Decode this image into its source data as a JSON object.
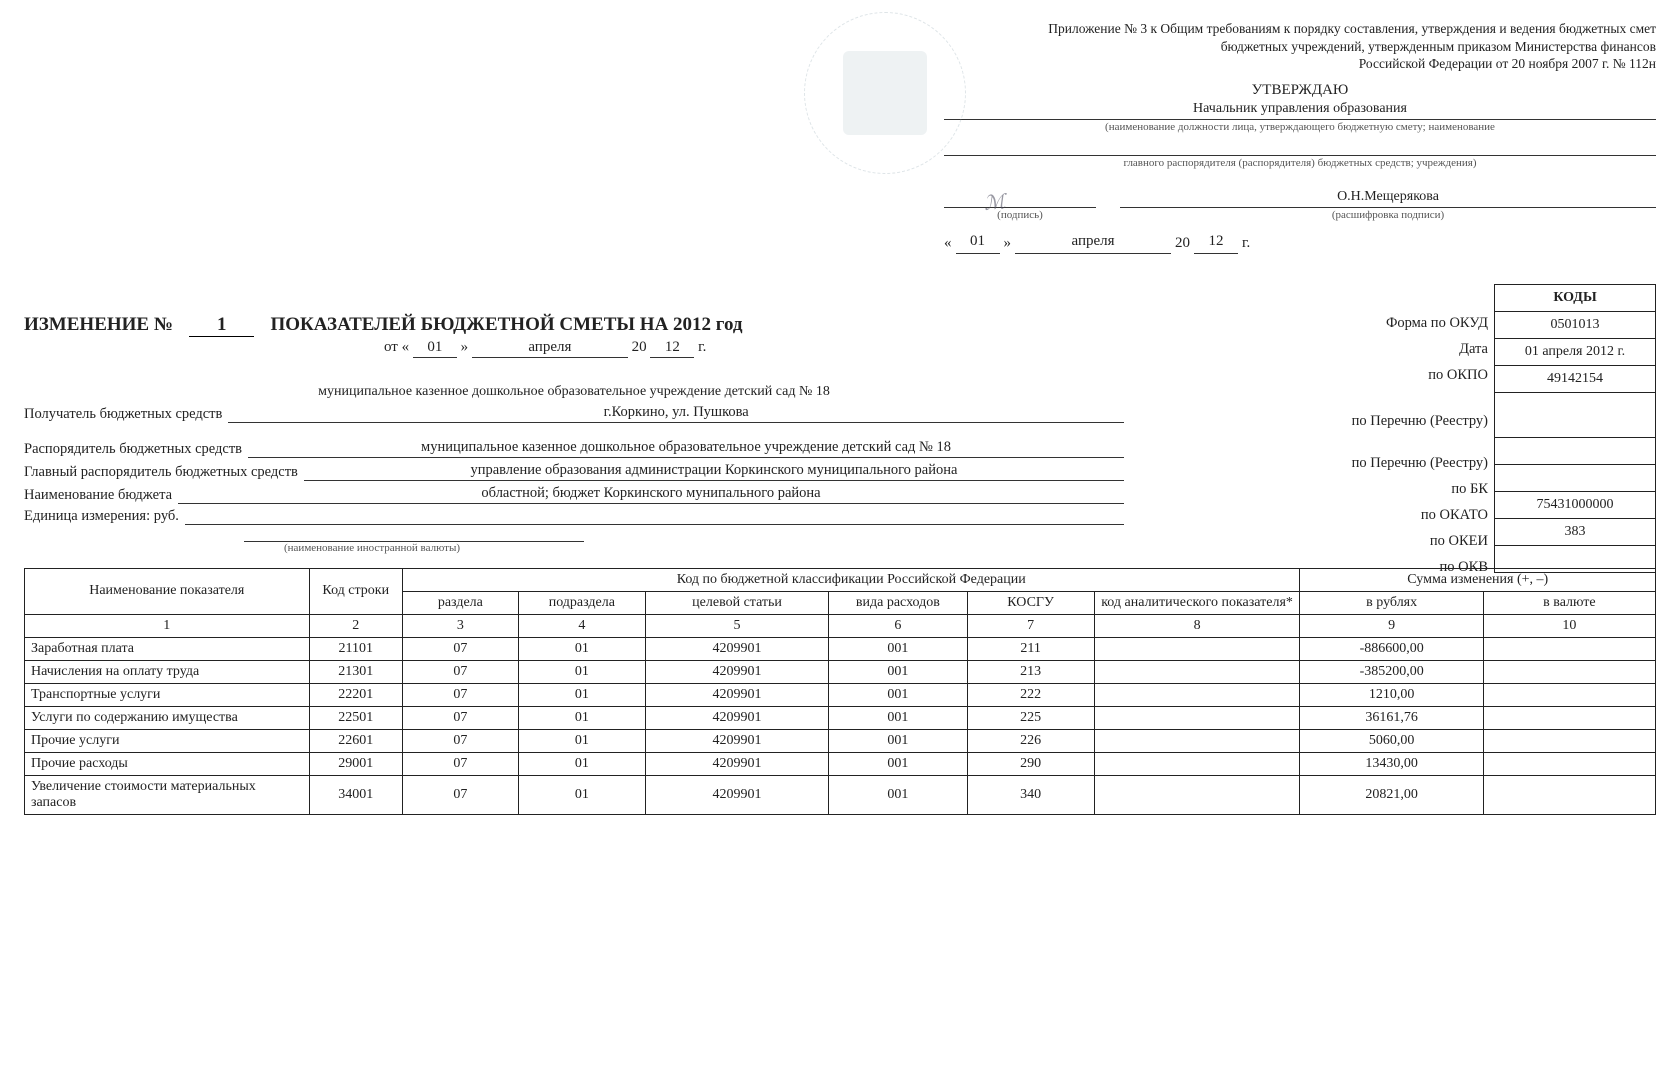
{
  "attachment_lines": [
    "Приложение № 3 к Общим требованиям к порядку составления, утверждения и ведения бюджетных смет",
    "бюджетных учреждений, утвержденным приказом Министерства финансов",
    "Российской Федерации от 20 ноября 2007 г. № 112н"
  ],
  "approve": {
    "title": "УТВЕРЖДАЮ",
    "position": "Начальник управления образования",
    "caption1": "(наименование должности лица, утверждающего бюджетную смету; наименование",
    "caption2": "главного распорядителя (распорядителя) бюджетных средств; учреждения)",
    "name": "О.Н.Мещерякова",
    "sig_caption": "(подпись)",
    "name_caption": "(расшифровка подписи)",
    "day": "01",
    "month": "апреля",
    "year_prefix": "20",
    "year": "12",
    "year_suffix": "г."
  },
  "title": {
    "t1": "ИЗМЕНЕНИЕ №",
    "num": "1",
    "t2": "ПОКАЗАТЕЛЕЙ БЮДЖЕТНОЙ СМЕТЫ НА 2012 год",
    "sub_prefix": "от «",
    "day": "01",
    "mid": "»",
    "month": "апреля",
    "year_prefix": "20",
    "year": "12",
    "year_suffix": "г."
  },
  "codes": {
    "header": "КОДЫ",
    "rows": [
      {
        "label": "Форма по ОКУД",
        "value": "0501013"
      },
      {
        "label": "Дата",
        "value": "01 апреля 2012 г."
      },
      {
        "label": "по ОКПО",
        "value": "49142154"
      },
      {
        "label": "по Перечню (Реестру)",
        "value": ""
      },
      {
        "label": "по Перечню (Реестру)",
        "value": ""
      },
      {
        "label": "по БК",
        "value": ""
      },
      {
        "label": "по ОКАТО",
        "value": "75431000000"
      },
      {
        "label": "по ОКЕИ",
        "value": "383"
      },
      {
        "label": "по ОКВ",
        "value": ""
      }
    ]
  },
  "form": {
    "recipient_label": "Получатель бюджетных средств",
    "recipient_value_l1": "муниципальное казенное дошкольное образовательное учреждение детский сад № 18",
    "recipient_value_l2": "г.Коркино,   ул. Пушкова",
    "manager_label": "Распорядитель бюджетных средств",
    "manager_value": "муниципальное казенное дошкольное образовательное учреждение детский сад № 18",
    "main_manager_label": "Главный распорядитель бюджетных средств",
    "main_manager_value": "управление образования администрации Коркинского муниципального района",
    "budget_label": "Наименование бюджета",
    "budget_value": "областной; бюджет Коркинского мунипального района",
    "unit_label": "Единица измерения: руб.",
    "unit_value": "",
    "currency_caption": "(наименование иностранной валюты)"
  },
  "table": {
    "head": {
      "c1": "Наименование показателя",
      "c2": "Код строки",
      "group_code": "Код по бюджетной классификации Российской Федерации",
      "c3": "раздела",
      "c4": "подраздела",
      "c5": "целевой статьи",
      "c6": "вида расходов",
      "c7": "КОСГУ",
      "c8": "код аналитического показателя*",
      "group_sum": "Сумма изменения (+, –)",
      "c9": "в рублях",
      "c10": "в валюте"
    },
    "numrow": [
      "1",
      "2",
      "3",
      "4",
      "5",
      "6",
      "7",
      "8",
      "9",
      "10"
    ],
    "rows": [
      {
        "name": "Заработная плата",
        "code": "21101",
        "c3": "07",
        "c4": "01",
        "c5": "4209901",
        "c6": "001",
        "c7": "211",
        "c8": "",
        "rub": "-886600,00",
        "val": ""
      },
      {
        "name": "Начисления на оплату труда",
        "code": "21301",
        "c3": "07",
        "c4": "01",
        "c5": "4209901",
        "c6": "001",
        "c7": "213",
        "c8": "",
        "rub": "-385200,00",
        "val": ""
      },
      {
        "name": "Транспортные услуги",
        "code": "22201",
        "c3": "07",
        "c4": "01",
        "c5": "4209901",
        "c6": "001",
        "c7": "222",
        "c8": "",
        "rub": "1210,00",
        "val": ""
      },
      {
        "name": "Услуги по содержанию имущества",
        "code": "22501",
        "c3": "07",
        "c4": "01",
        "c5": "4209901",
        "c6": "001",
        "c7": "225",
        "c8": "",
        "rub": "36161,76",
        "val": ""
      },
      {
        "name": "Прочие услуги",
        "code": "22601",
        "c3": "07",
        "c4": "01",
        "c5": "4209901",
        "c6": "001",
        "c7": "226",
        "c8": "",
        "rub": "5060,00",
        "val": ""
      },
      {
        "name": "Прочие расходы",
        "code": "29001",
        "c3": "07",
        "c4": "01",
        "c5": "4209901",
        "c6": "001",
        "c7": "290",
        "c8": "",
        "rub": "13430,00",
        "val": ""
      },
      {
        "name": "Увеличение стоимости материальных запасов",
        "code": "34001",
        "c3": "07",
        "c4": "01",
        "c5": "4209901",
        "c6": "001",
        "c7": "340",
        "c8": "",
        "rub": "20821,00",
        "val": ""
      }
    ]
  }
}
